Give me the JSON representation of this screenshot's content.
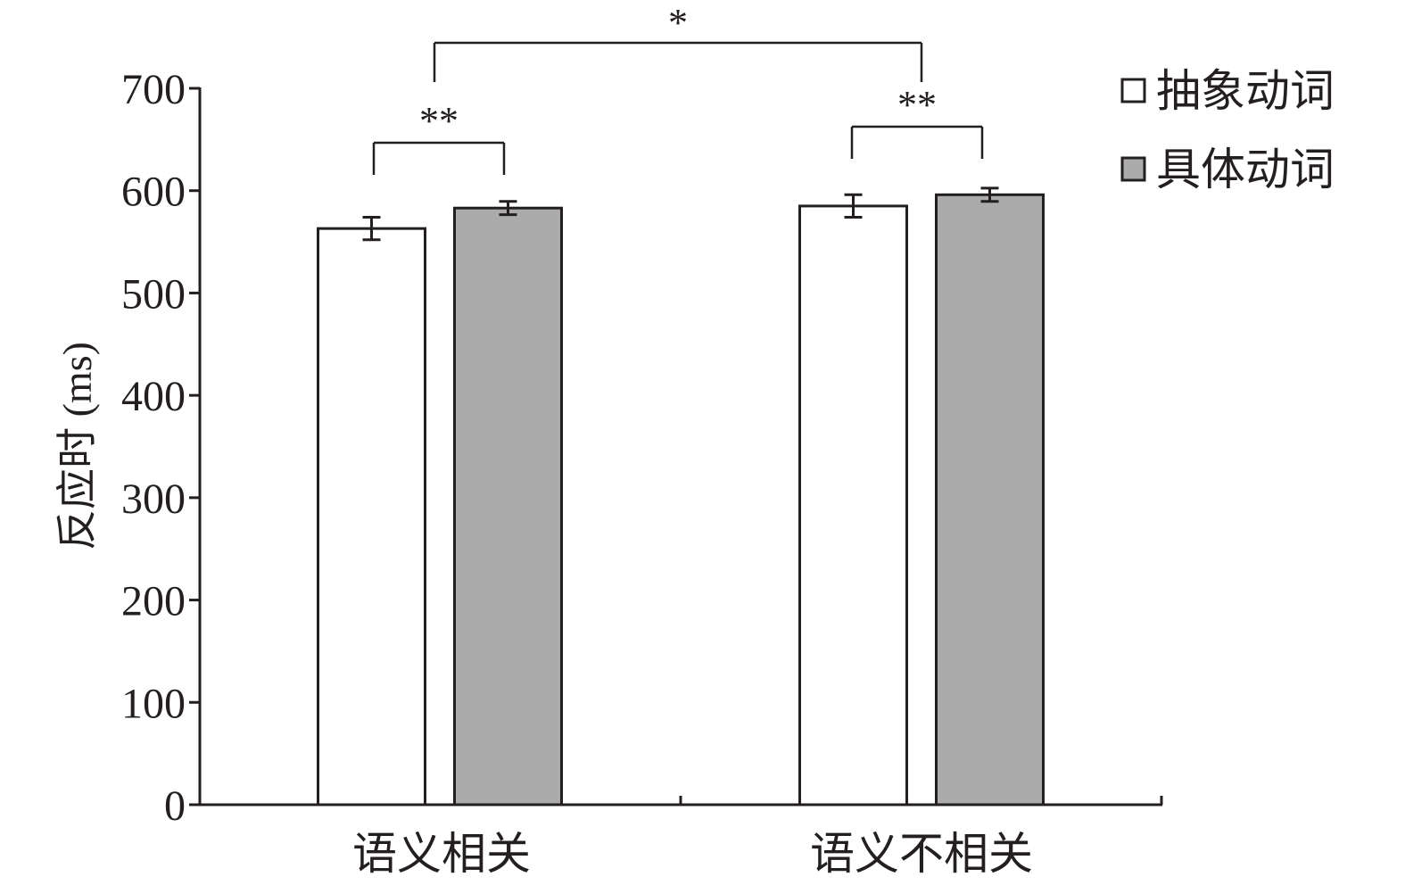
{
  "chart_data": {
    "type": "bar",
    "title": "",
    "xlabel": "",
    "ylabel": "反应时 (ms)",
    "ylim": [
      0,
      700
    ],
    "yticks": [
      "0",
      "100",
      "200",
      "300",
      "400",
      "500",
      "600",
      "700"
    ],
    "categories": [
      "语义相关",
      "语义不相关"
    ],
    "series": [
      {
        "name": "抽象动词",
        "values": [
          563,
          585
        ],
        "errors": [
          11,
          11
        ],
        "color": "#ffffff"
      },
      {
        "name": "具体动词",
        "values": [
          583,
          596
        ],
        "errors": [
          6.5,
          6.5
        ],
        "color": "#ababab"
      }
    ],
    "legend": "top-right",
    "grid": false,
    "annotations": [
      {
        "label": "**",
        "between": [
          "语义相关 抽象动词",
          "语义相关 具体动词"
        ]
      },
      {
        "label": "**",
        "between": [
          "语义不相关 抽象动词",
          "语义不相关 具体动词"
        ]
      },
      {
        "label": "*",
        "between": [
          "语义相关",
          "语义不相关"
        ]
      }
    ]
  }
}
